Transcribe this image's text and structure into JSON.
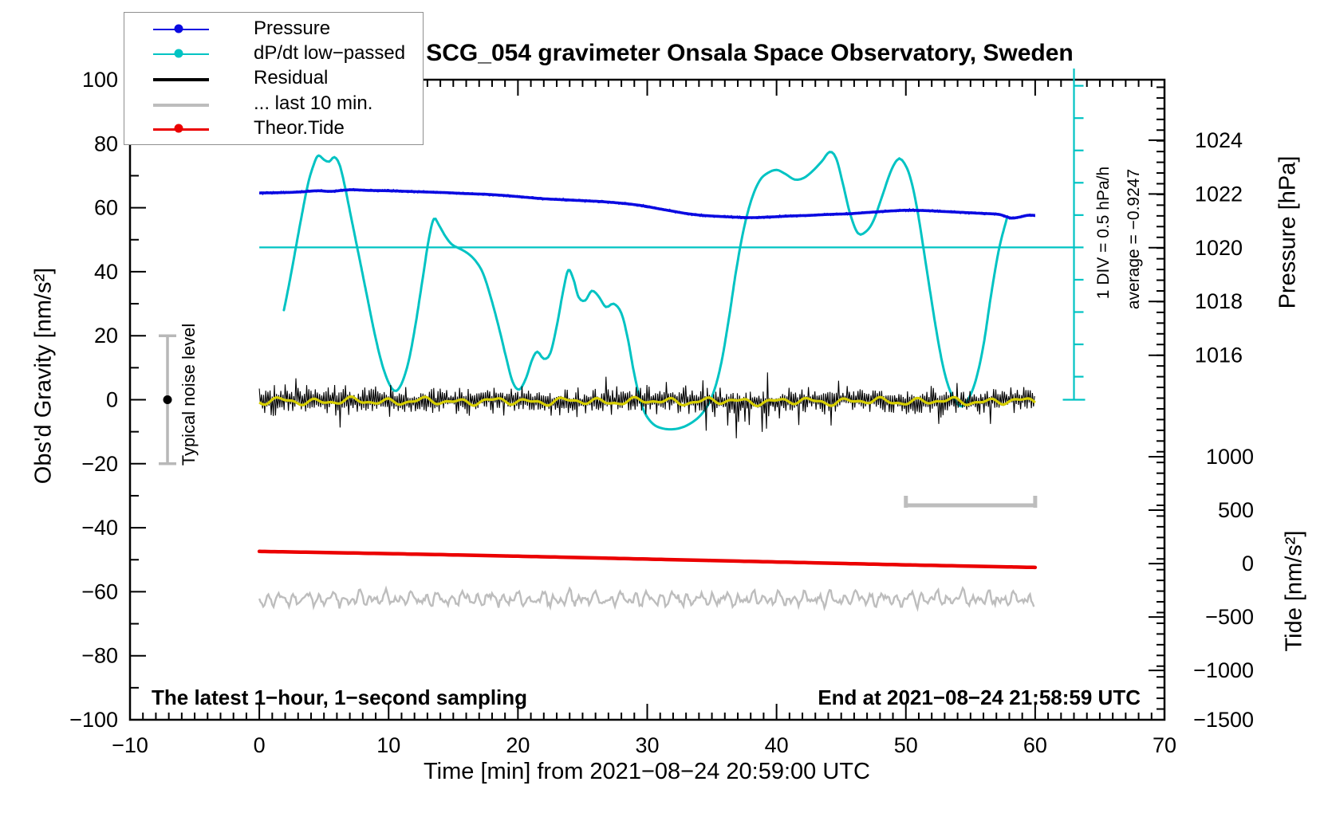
{
  "title": "SCG_054 gravimeter Onsala Space Observatory, Sweden",
  "axes": {
    "x_title": "Time [min] from 2021−08−24 20:59:00 UTC",
    "y_left_title": "Obs'd Gravity [nm/s²]",
    "y_right_top_title": "Pressure [hPa]",
    "y_right_bottom_title": "Tide [nm/s²]"
  },
  "annotations": {
    "bottom_left_note": "The latest 1−hour, 1−second sampling",
    "bottom_right_note": "End at 2021−08−24 21:58:59 UTC",
    "div_scale_note": "1 DIV = 0.5 hPa/h",
    "average_note": "average = −0.9247",
    "noise_level_note": "Typical noise level"
  },
  "legend": {
    "items": [
      {
        "label": "Pressure",
        "color": "#0a0ae1",
        "thickness": 2.5,
        "dot": true
      },
      {
        "label": "dP/dt low−passed",
        "color": "#00c3c3",
        "thickness": 2.5,
        "dot": true
      },
      {
        "label": "Residual",
        "color": "#000000",
        "thickness": 4.5,
        "dot": false
      },
      {
        "label": "... last 10 min.",
        "color": "#bdbdbd",
        "thickness": 4.0,
        "dot": false
      },
      {
        "label": "Theor.Tide",
        "color": "#eb0000",
        "thickness": 3.0,
        "dot": true
      }
    ]
  },
  "chart_data": {
    "type": "line",
    "title": "SCG_054 gravimeter Onsala Space Observatory, Sweden",
    "xlabel": "Time [min] from 2021−08−24 20:59:00 UTC",
    "ylabel": "Obs'd Gravity [nm/s²]",
    "xlim": [
      -10,
      70
    ],
    "ylim": [
      -100,
      100
    ],
    "x_ticks_major": [
      -10,
      0,
      10,
      20,
      30,
      40,
      50,
      60,
      70
    ],
    "x_tick_minor_step": 1,
    "y_ticks_major": [
      -100,
      -80,
      -60,
      -40,
      -20,
      0,
      20,
      40,
      60,
      80,
      100
    ],
    "y_tick_minor_step": 10,
    "grid": false,
    "legend_position": "top-left",
    "colors": {
      "pressure": "#0a0ae1",
      "dpdt": "#00c3c3",
      "residual": "#000000",
      "residual_lowpass": "#d6ce00",
      "last10": "#bdbdbd",
      "tide": "#eb0000",
      "noisebar": "#b8b8b8"
    },
    "pressure_axis": {
      "unit": "hPa",
      "ticks": [
        1024,
        1022,
        1020,
        1018,
        1016
      ],
      "g_of_1020": 47.5,
      "g_per_hPa": 8.4
    },
    "tide_axis": {
      "unit": "nm/s²",
      "ticks": [
        1000,
        500,
        0,
        -500,
        -1000,
        -1500
      ],
      "g_of_0": -51.2,
      "g_per_unit": 0.0334
    },
    "series": [
      {
        "name": "Pressure",
        "axis": "pressure",
        "avg_hPa_start": 1021.9,
        "points_t_g": [
          [
            0,
            64.6
          ],
          [
            1.5,
            64.7
          ],
          [
            3,
            64.9
          ],
          [
            4.5,
            65.3
          ],
          [
            5.5,
            65.1
          ],
          [
            7,
            65.6
          ],
          [
            8.5,
            65.4
          ],
          [
            10,
            65.3
          ],
          [
            11.5,
            65.1
          ],
          [
            13,
            64.9
          ],
          [
            14.5,
            64.7
          ],
          [
            16,
            64.4
          ],
          [
            17.5,
            64.2
          ],
          [
            19,
            63.8
          ],
          [
            20.5,
            63.3
          ],
          [
            22,
            62.8
          ],
          [
            23.5,
            62.5
          ],
          [
            25,
            62.2
          ],
          [
            26.5,
            61.9
          ],
          [
            28,
            61.4
          ],
          [
            29.5,
            60.7
          ],
          [
            31,
            59.6
          ],
          [
            32,
            58.9
          ],
          [
            33,
            58.2
          ],
          [
            34,
            57.7
          ],
          [
            35,
            57.4
          ],
          [
            36.5,
            57.1
          ],
          [
            38,
            56.9
          ],
          [
            39.5,
            57.1
          ],
          [
            41,
            57.4
          ],
          [
            42.5,
            57.6
          ],
          [
            44,
            57.9
          ],
          [
            45.5,
            58.1
          ],
          [
            47,
            58.5
          ],
          [
            48.5,
            58.9
          ],
          [
            50,
            59.2
          ],
          [
            51.5,
            59.1
          ],
          [
            53,
            58.8
          ],
          [
            54.5,
            58.5
          ],
          [
            56,
            58.2
          ],
          [
            57.2,
            57.9
          ],
          [
            58.1,
            56.8
          ],
          [
            58.7,
            57.0
          ],
          [
            59.4,
            57.6
          ],
          [
            60,
            57.6
          ]
        ]
      },
      {
        "name": "dP/dt low-passed",
        "axis": "dpdt",
        "average_hPa_per_h": -0.9247,
        "scale_note": "1 DIV = 0.5 hPa/h",
        "points_t_g": [
          [
            1.9,
            28
          ],
          [
            2.3,
            36
          ],
          [
            2.8,
            47
          ],
          [
            3.3,
            58
          ],
          [
            3.8,
            68
          ],
          [
            4.3,
            74.5
          ],
          [
            4.6,
            76.3
          ],
          [
            5.0,
            75.0
          ],
          [
            5.4,
            74.4
          ],
          [
            5.8,
            75.8
          ],
          [
            6.2,
            73.5
          ],
          [
            6.6,
            67
          ],
          [
            7.1,
            57
          ],
          [
            7.7,
            45
          ],
          [
            8.3,
            33
          ],
          [
            8.9,
            21
          ],
          [
            9.5,
            11
          ],
          [
            10.1,
            4.5
          ],
          [
            10.6,
            2.8
          ],
          [
            11.1,
            6
          ],
          [
            11.6,
            13
          ],
          [
            12.1,
            24
          ],
          [
            12.6,
            37
          ],
          [
            13.1,
            50
          ],
          [
            13.5,
            56.5
          ],
          [
            13.9,
            54.5
          ],
          [
            14.4,
            51
          ],
          [
            14.9,
            48.5
          ],
          [
            15.5,
            47.2
          ],
          [
            16.1,
            45.8
          ],
          [
            16.7,
            43.5
          ],
          [
            17.3,
            39.5
          ],
          [
            17.9,
            32
          ],
          [
            18.5,
            23
          ],
          [
            19.1,
            13
          ],
          [
            19.6,
            5.5
          ],
          [
            20.1,
            3.2
          ],
          [
            20.6,
            6.5
          ],
          [
            21.1,
            12.5
          ],
          [
            21.5,
            15
          ],
          [
            22.0,
            12.8
          ],
          [
            22.5,
            14.5
          ],
          [
            23.0,
            23
          ],
          [
            23.5,
            34
          ],
          [
            23.9,
            40.5
          ],
          [
            24.3,
            37.5
          ],
          [
            24.7,
            32
          ],
          [
            25.2,
            31
          ],
          [
            25.7,
            34
          ],
          [
            26.2,
            32.5
          ],
          [
            26.8,
            29
          ],
          [
            27.4,
            30
          ],
          [
            28.0,
            27
          ],
          [
            28.5,
            19
          ],
          [
            29.0,
            8
          ],
          [
            29.6,
            -2
          ],
          [
            30.3,
            -7
          ],
          [
            31.2,
            -9
          ],
          [
            32.4,
            -9
          ],
          [
            33.5,
            -7
          ],
          [
            34.4,
            -3.5
          ],
          [
            35.1,
            2
          ],
          [
            35.7,
            11
          ],
          [
            36.3,
            25
          ],
          [
            36.9,
            41
          ],
          [
            37.5,
            54
          ],
          [
            38.1,
            63
          ],
          [
            38.7,
            68.5
          ],
          [
            39.3,
            70.8
          ],
          [
            40.0,
            71.8
          ],
          [
            40.7,
            70.5
          ],
          [
            41.4,
            68.8
          ],
          [
            42.1,
            69.3
          ],
          [
            42.8,
            71.5
          ],
          [
            43.5,
            74.5
          ],
          [
            44.1,
            77.4
          ],
          [
            44.6,
            75.5
          ],
          [
            45.1,
            68
          ],
          [
            45.7,
            58
          ],
          [
            46.3,
            52
          ],
          [
            46.9,
            52.5
          ],
          [
            47.5,
            56
          ],
          [
            48.2,
            64
          ],
          [
            48.8,
            71
          ],
          [
            49.3,
            74.8
          ],
          [
            49.7,
            74.9
          ],
          [
            50.3,
            70
          ],
          [
            50.9,
            59
          ],
          [
            51.6,
            41
          ],
          [
            52.3,
            23
          ],
          [
            52.9,
            10
          ],
          [
            53.5,
            2
          ],
          [
            54.2,
            -2
          ],
          [
            54.8,
            0
          ],
          [
            55.4,
            6
          ],
          [
            56.0,
            17
          ],
          [
            56.6,
            33
          ],
          [
            57.2,
            47
          ],
          [
            57.8,
            56.5
          ]
        ]
      },
      {
        "name": "Theor.Tide",
        "axis": "tide",
        "points_t_g": [
          [
            0,
            -47.4
          ],
          [
            10,
            -48.1
          ],
          [
            20,
            -48.9
          ],
          [
            30,
            -49.8
          ],
          [
            40,
            -50.7
          ],
          [
            50,
            -51.6
          ],
          [
            60,
            -52.4
          ]
        ]
      },
      {
        "name": "Residual",
        "axis": "gravity",
        "center_g": -0.3,
        "typical_amp_g": 4.5,
        "t_range": [
          0,
          60
        ]
      },
      {
        "name": "Residual low-passed",
        "axis": "gravity",
        "center_g": -0.5,
        "amp_g": 1.3,
        "t_range": [
          0,
          60
        ]
      },
      {
        "name": "... last 10 min.",
        "axis": "gravity",
        "center_g": -62.3,
        "amp_g": 2.6,
        "t_range": [
          0,
          60
        ]
      }
    ],
    "overlays": {
      "dpdt_average_line": {
        "g": 47.6,
        "t_from": 0,
        "t_to": 63
      },
      "dpdt_scale_bar": {
        "t": 63,
        "g_from": 0,
        "g_to": 103.5,
        "tick_g_start": 7.2,
        "tick_g_step": 10.1
      },
      "noise_errorbar": {
        "t": -7.1,
        "g_center": 0,
        "g_half_span": 20
      },
      "last10_bracket": {
        "t_from": 50,
        "t_to": 60,
        "g": -33
      }
    }
  }
}
